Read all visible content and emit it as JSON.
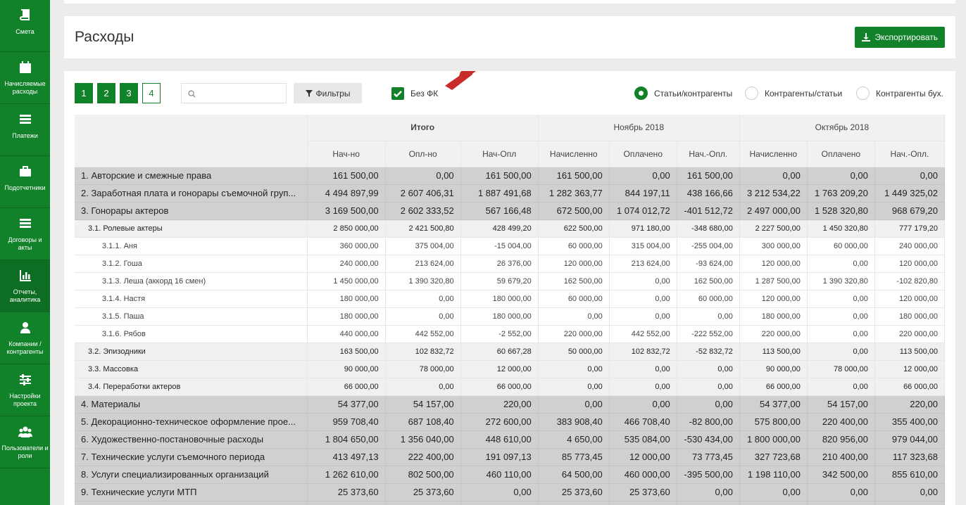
{
  "sidebar": {
    "items": [
      {
        "label": "Смета",
        "icon": "book-icon"
      },
      {
        "label": "Начисляемые расходы",
        "icon": "calendar-icon"
      },
      {
        "label": "Платежи",
        "icon": "list-icon"
      },
      {
        "label": "Подотчетники",
        "icon": "briefcase-icon"
      },
      {
        "label": "Договоры и акты",
        "icon": "list-icon"
      },
      {
        "label": "Отчеты, аналитика",
        "icon": "bar-chart-icon"
      },
      {
        "label": "Компании / контрагенты",
        "icon": "user-icon"
      },
      {
        "label": "Настройки проекта",
        "icon": "sliders-icon"
      },
      {
        "label": "Пользователи и роли",
        "icon": "users-icon"
      }
    ]
  },
  "header": {
    "title": "Расходы",
    "export_label": "Экспортировать"
  },
  "toolbar": {
    "pages": [
      "1",
      "2",
      "3",
      "4"
    ],
    "search_placeholder": "",
    "filters_label": "Фильтры",
    "no_fk_label": "Без ФК",
    "no_fk_checked": true,
    "radios": [
      {
        "label": "Статьи/контрагенты",
        "selected": true
      },
      {
        "label": "Контрагенты/статьи",
        "selected": false
      },
      {
        "label": "Контрагенты бух.",
        "selected": false
      }
    ]
  },
  "table": {
    "groups": [
      "Итого",
      "Ноябрь 2018",
      "Октябрь 2018"
    ],
    "subheaders": [
      "Нач-но",
      "Опл-но",
      "Нач-Опл",
      "Начисленно",
      "Оплачено",
      "Нач.-Опл.",
      "Начисленно",
      "Оплачено",
      "Нач.-Опл."
    ],
    "rows": [
      {
        "level": 1,
        "label": "1. Авторские и смежные права",
        "v": [
          "161 500,00",
          "0,00",
          "161 500,00",
          "161 500,00",
          "0,00",
          "161 500,00",
          "0,00",
          "0,00",
          "0,00"
        ]
      },
      {
        "level": 1,
        "label": "2. Заработная плата и гонорары съемочной груп...",
        "v": [
          "4 494 897,99",
          "2 607 406,31",
          "1 887 491,68",
          "1 282 363,77",
          "844 197,11",
          "438 166,66",
          "3 212 534,22",
          "1 763 209,20",
          "1 449 325,02"
        ]
      },
      {
        "level": 1,
        "label": "3. Гонорары актеров",
        "v": [
          "3 169 500,00",
          "2 602 333,52",
          "567 166,48",
          "672 500,00",
          "1 074 012,72",
          "-401 512,72",
          "2 497 000,00",
          "1 528 320,80",
          "968 679,20"
        ]
      },
      {
        "level": 2,
        "label": "3.1. Ролевые актеры",
        "v": [
          "2 850 000,00",
          "2 421 500,80",
          "428 499,20",
          "622 500,00",
          "971 180,00",
          "-348 680,00",
          "2 227 500,00",
          "1 450 320,80",
          "777 179,20"
        ]
      },
      {
        "level": 3,
        "label": "3.1.1. Аня",
        "v": [
          "360 000,00",
          "375 004,00",
          "-15 004,00",
          "60 000,00",
          "315 004,00",
          "-255 004,00",
          "300 000,00",
          "60 000,00",
          "240 000,00"
        ]
      },
      {
        "level": 3,
        "label": "3.1.2. Гоша",
        "v": [
          "240 000,00",
          "213 624,00",
          "26 376,00",
          "120 000,00",
          "213 624,00",
          "-93 624,00",
          "120 000,00",
          "0,00",
          "120 000,00"
        ]
      },
      {
        "level": 3,
        "label": "3.1.3. Леша (аккорд 16 смен)",
        "v": [
          "1 450 000,00",
          "1 390 320,80",
          "59 679,20",
          "162 500,00",
          "0,00",
          "162 500,00",
          "1 287 500,00",
          "1 390 320,80",
          "-102 820,80"
        ]
      },
      {
        "level": 3,
        "label": "3.1.4. Настя",
        "v": [
          "180 000,00",
          "0,00",
          "180 000,00",
          "60 000,00",
          "0,00",
          "60 000,00",
          "120 000,00",
          "0,00",
          "120 000,00"
        ]
      },
      {
        "level": 3,
        "label": "3.1.5. Паша",
        "v": [
          "180 000,00",
          "0,00",
          "180 000,00",
          "0,00",
          "0,00",
          "0,00",
          "180 000,00",
          "0,00",
          "180 000,00"
        ]
      },
      {
        "level": 3,
        "label": "3.1.6. Рябов",
        "v": [
          "440 000,00",
          "442 552,00",
          "-2 552,00",
          "220 000,00",
          "442 552,00",
          "-222 552,00",
          "220 000,00",
          "0,00",
          "220 000,00"
        ]
      },
      {
        "level": 2,
        "label": "3.2. Эпизодники",
        "v": [
          "163 500,00",
          "102 832,72",
          "60 667,28",
          "50 000,00",
          "102 832,72",
          "-52 832,72",
          "113 500,00",
          "0,00",
          "113 500,00"
        ]
      },
      {
        "level": 2,
        "label": "3.3. Массовка",
        "v": [
          "90 000,00",
          "78 000,00",
          "12 000,00",
          "0,00",
          "0,00",
          "0,00",
          "90 000,00",
          "78 000,00",
          "12 000,00"
        ]
      },
      {
        "level": 2,
        "label": "3.4. Переработки актеров",
        "v": [
          "66 000,00",
          "0,00",
          "66 000,00",
          "0,00",
          "0,00",
          "0,00",
          "66 000,00",
          "0,00",
          "66 000,00"
        ]
      },
      {
        "level": 1,
        "label": "4. Материалы",
        "v": [
          "54 377,00",
          "54 157,00",
          "220,00",
          "0,00",
          "0,00",
          "0,00",
          "54 377,00",
          "54 157,00",
          "220,00"
        ]
      },
      {
        "level": 1,
        "label": "5. Декорационно-техническое оформление прое...",
        "v": [
          "959 708,40",
          "687 108,40",
          "272 600,00",
          "383 908,40",
          "466 708,40",
          "-82 800,00",
          "575 800,00",
          "220 400,00",
          "355 400,00"
        ]
      },
      {
        "level": 1,
        "label": "6. Художественно-постановочные расходы",
        "v": [
          "1 804 650,00",
          "1 356 040,00",
          "448 610,00",
          "4 650,00",
          "535 084,00",
          "-530 434,00",
          "1 800 000,00",
          "820 956,00",
          "979 044,00"
        ]
      },
      {
        "level": 1,
        "label": "7. Технические услуги съемочного периода",
        "v": [
          "413 497,13",
          "222 400,00",
          "191 097,13",
          "85 773,45",
          "12 000,00",
          "73 773,45",
          "327 723,68",
          "210 400,00",
          "117 323,68"
        ]
      },
      {
        "level": 1,
        "label": "8. Услуги специализированных организаций",
        "v": [
          "1 262 610,00",
          "802 500,00",
          "460 110,00",
          "64 500,00",
          "460 000,00",
          "-395 500,00",
          "1 198 110,00",
          "342 500,00",
          "855 610,00"
        ]
      },
      {
        "level": 1,
        "label": "9. Технические услуги МТП",
        "v": [
          "25 373,60",
          "25 373,60",
          "0,00",
          "25 373,60",
          "25 373,60",
          "0,00",
          "0,00",
          "0,00",
          "0,00"
        ]
      },
      {
        "level": 1,
        "label": "",
        "v": [
          "",
          "",
          "",
          "",
          "",
          "",
          "",
          "",
          ""
        ]
      }
    ]
  }
}
